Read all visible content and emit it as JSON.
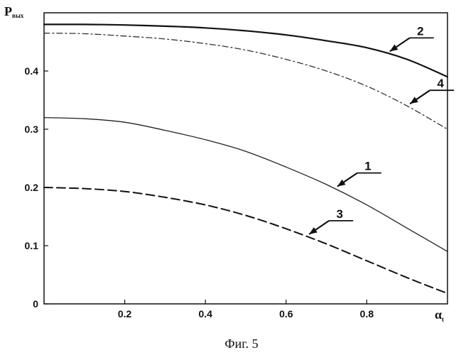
{
  "chart_data": {
    "type": "line",
    "title": "",
    "ylabel": "P",
    "ylabel_sub": "вых",
    "xlabel": "α",
    "xlabel_sub": "t",
    "xlim": [
      0,
      1.0
    ],
    "ylim": [
      0,
      0.5
    ],
    "x_ticks": [
      0.2,
      0.4,
      0.6,
      0.8
    ],
    "x_tick_labels": [
      "0.2",
      "0.4",
      "0.6",
      "0.8"
    ],
    "y_ticks": [
      0,
      0.1,
      0.2,
      0.3,
      0.4
    ],
    "y_tick_labels": [
      "0",
      "0.1",
      "0.2",
      "0.3",
      "0.4"
    ],
    "grid": false,
    "x": [
      0,
      0.1,
      0.2,
      0.3,
      0.4,
      0.5,
      0.6,
      0.7,
      0.8,
      0.9,
      1.0
    ],
    "series": [
      {
        "name": "1",
        "style": "solid-thin",
        "values": [
          0.32,
          0.318,
          0.312,
          0.298,
          0.282,
          0.262,
          0.235,
          0.205,
          0.17,
          0.13,
          0.09
        ]
      },
      {
        "name": "2",
        "style": "solid-thick",
        "values": [
          0.48,
          0.48,
          0.479,
          0.477,
          0.474,
          0.469,
          0.462,
          0.452,
          0.44,
          0.42,
          0.39
        ]
      },
      {
        "name": "3",
        "style": "dashed",
        "values": [
          0.2,
          0.198,
          0.193,
          0.183,
          0.17,
          0.152,
          0.129,
          0.103,
          0.074,
          0.045,
          0.018
        ]
      },
      {
        "name": "4",
        "style": "dashed-thin",
        "values": [
          0.465,
          0.464,
          0.46,
          0.455,
          0.447,
          0.436,
          0.42,
          0.4,
          0.374,
          0.34,
          0.3
        ]
      }
    ],
    "annotations": [
      {
        "label": "1",
        "series": "1",
        "at_x": 0.72
      },
      {
        "label": "2",
        "series": "2",
        "at_x": 0.85
      },
      {
        "label": "3",
        "series": "3",
        "at_x": 0.65
      },
      {
        "label": "4",
        "series": "4",
        "at_x": 0.9
      }
    ]
  },
  "caption": "Фиг. 5"
}
